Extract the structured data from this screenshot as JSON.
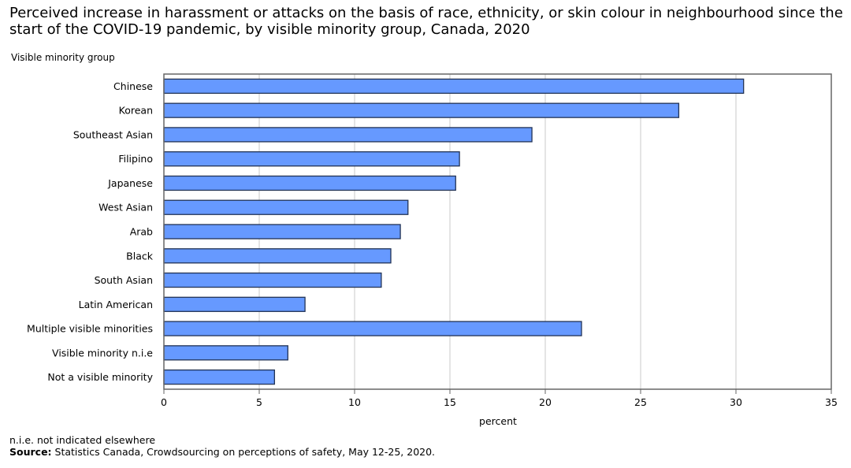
{
  "chart_data": {
    "type": "bar",
    "orientation": "horizontal",
    "title": "Perceived increase in harassment or attacks on the basis of race, ethnicity, or skin colour in neighbourhood since the start of the COVID-19 pandemic, by visible minority group, Canada, 2020",
    "ylabel": "Visible minority group",
    "xlabel": "percent",
    "xlim": [
      0,
      35
    ],
    "xticks": [
      0,
      5,
      10,
      15,
      20,
      25,
      30,
      35
    ],
    "grid": true,
    "bar_color": "#6699ff",
    "categories": [
      "Chinese",
      "Korean",
      "Southeast Asian",
      "Filipino",
      "Japanese",
      "West Asian",
      "Arab",
      "Black",
      "South Asian",
      "Latin American",
      "Multiple visible minorities",
      "Visible minority n.i.e",
      "Not a visible minority"
    ],
    "values": [
      30.4,
      27.0,
      19.3,
      15.5,
      15.3,
      12.8,
      12.4,
      11.9,
      11.4,
      7.4,
      21.9,
      6.5,
      5.8
    ]
  },
  "footnote": "n.i.e. not indicated elsewhere",
  "source_label": "Source:",
  "source_text": " Statistics Canada, Crowdsourcing on perceptions of safety, May 12-25, 2020."
}
